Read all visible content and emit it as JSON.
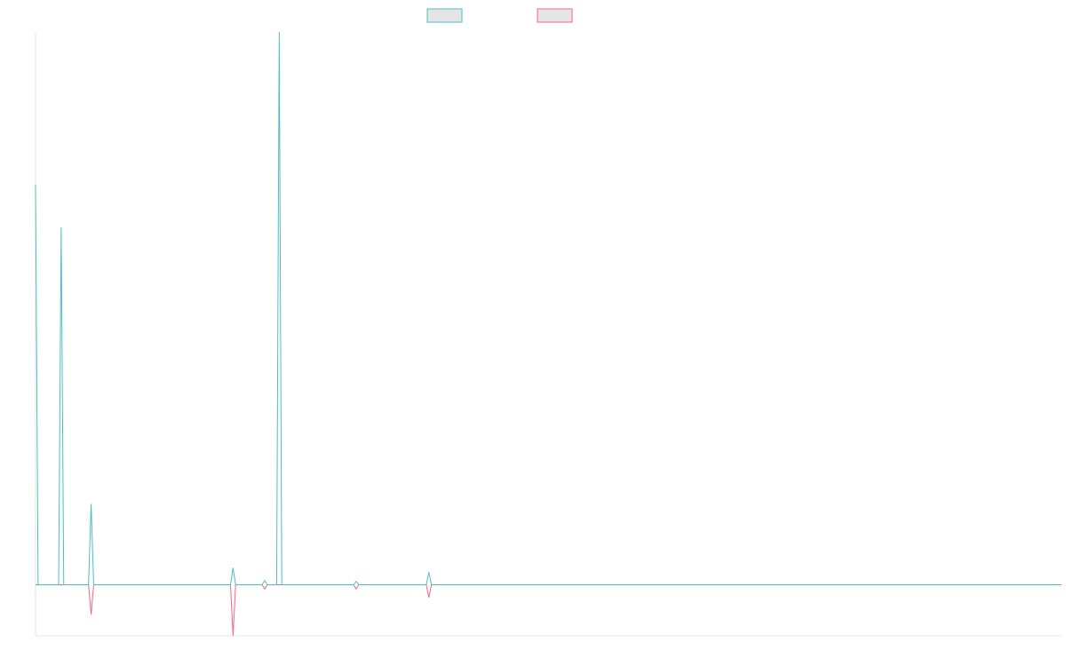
{
  "chart_data": {
    "type": "line",
    "title": "",
    "xlabel": "",
    "ylabel": "",
    "grid": false,
    "legend": "top-center",
    "xlim": [
      0,
      1200
    ],
    "ylim": [
      -6,
      65
    ],
    "baseline": 0,
    "series": [
      {
        "color": "#4bc0c0",
        "fill": "#e5e5e5",
        "points": [
          [
            0,
            47
          ],
          [
            3,
            0
          ],
          [
            27,
            0
          ],
          [
            30,
            42
          ],
          [
            33,
            0
          ],
          [
            62,
            0
          ],
          [
            65,
            9.5
          ],
          [
            68,
            0
          ],
          [
            228,
            0
          ],
          [
            231,
            2
          ],
          [
            234,
            0
          ],
          [
            265,
            0
          ],
          [
            268,
            0.5
          ],
          [
            271,
            0
          ],
          [
            282,
            0
          ],
          [
            285,
            65
          ],
          [
            288,
            0
          ],
          [
            372,
            0
          ],
          [
            375,
            0.4
          ],
          [
            378,
            0
          ],
          [
            457,
            0
          ],
          [
            460,
            1.5
          ],
          [
            463,
            0
          ],
          [
            1200,
            0
          ]
        ]
      },
      {
        "color": "#ff6384",
        "fill": "#e5e5e5",
        "points": [
          [
            0,
            0
          ],
          [
            62,
            0
          ],
          [
            65,
            -3.5
          ],
          [
            68,
            0
          ],
          [
            228,
            0
          ],
          [
            231,
            -6
          ],
          [
            234,
            0
          ],
          [
            265,
            0
          ],
          [
            268,
            -0.5
          ],
          [
            271,
            0
          ],
          [
            372,
            0
          ],
          [
            375,
            -0.5
          ],
          [
            378,
            0
          ],
          [
            457,
            0
          ],
          [
            460,
            -1.5
          ],
          [
            463,
            0
          ],
          [
            1200,
            0
          ]
        ]
      }
    ]
  }
}
